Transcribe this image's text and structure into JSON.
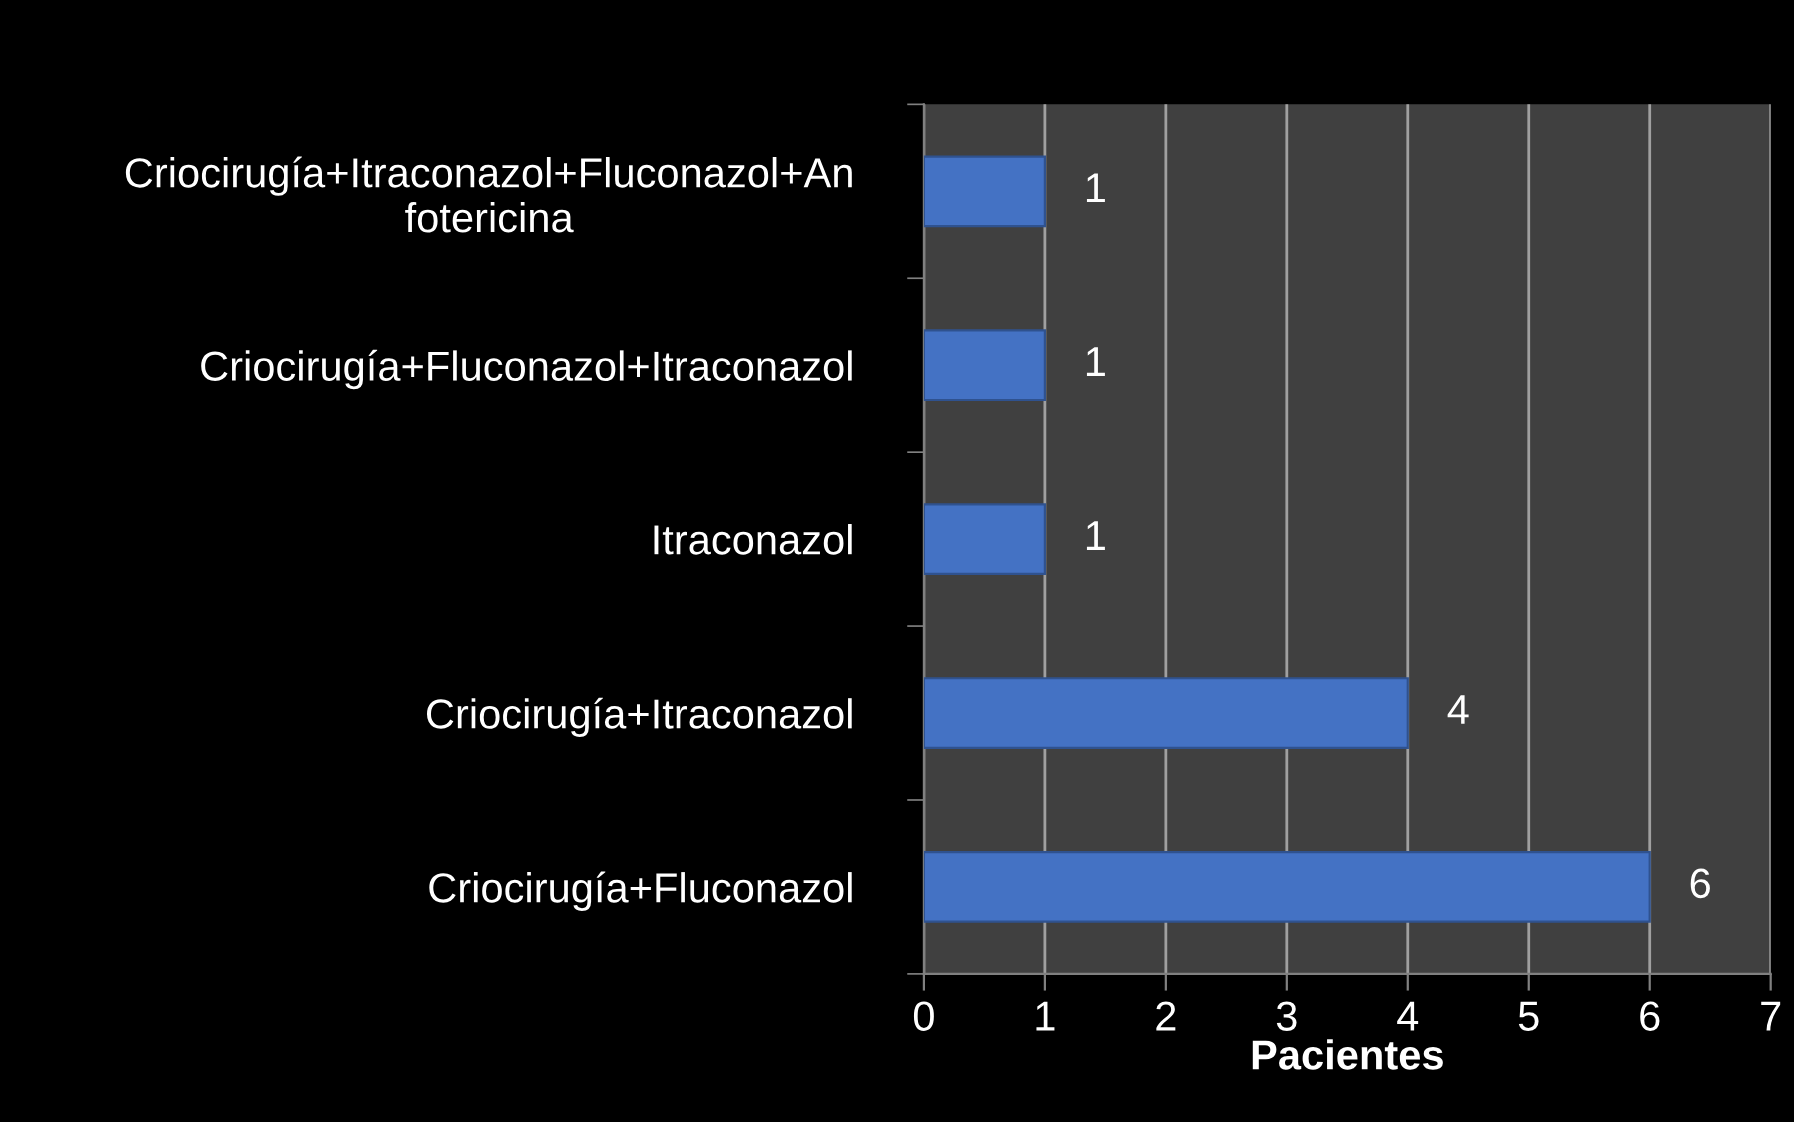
{
  "chart_data": {
    "type": "bar",
    "orientation": "horizontal",
    "xlabel": "Pacientes",
    "categories": [
      "Criocirugía+Itraconazol+Fluconazol+An\nfotericina",
      "Criocirugía+Fluconazol+Itraconazol",
      "Itraconazol",
      "Criocirugía+Itraconazol",
      "Criocirugía+Fluconazol"
    ],
    "values": [
      1,
      1,
      1,
      4,
      6
    ],
    "color": "#4472c4",
    "xlim": [
      0,
      7
    ],
    "xticks": [
      0,
      1,
      2,
      3,
      4,
      5,
      6,
      7
    ],
    "grid": "x",
    "data_labels": true
  }
}
